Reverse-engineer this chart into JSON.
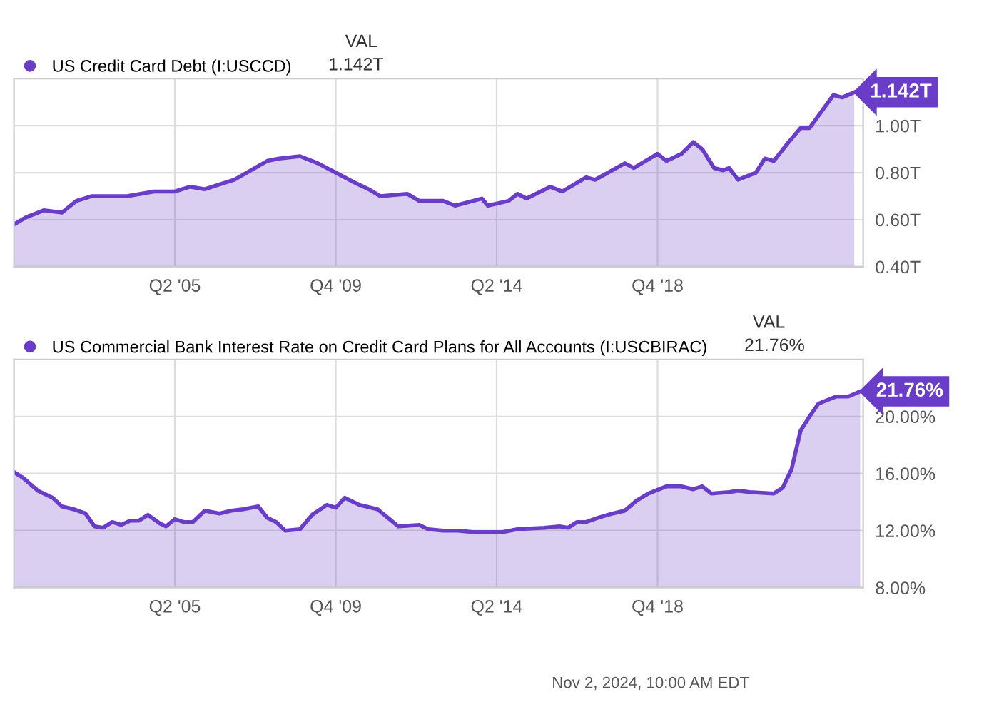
{
  "chart_data": [
    {
      "type": "area",
      "legend": "top left",
      "grid": true,
      "xlim": [
        "2000-10",
        "2024-07"
      ],
      "ylim": [
        0.4,
        1.2
      ],
      "xticks": [
        {
          "value": "2005-04",
          "label": "Q2 '05"
        },
        {
          "value": "2009-10",
          "label": "Q4 '09"
        },
        {
          "value": "2014-04",
          "label": "Q2 '14"
        },
        {
          "value": "2018-10",
          "label": "Q4 '18"
        }
      ],
      "yticks": [
        {
          "value": 0.4,
          "label": "0.40T"
        },
        {
          "value": 0.6,
          "label": "0.60T"
        },
        {
          "value": 0.8,
          "label": "0.80T"
        },
        {
          "value": 1.0,
          "label": "1.00T"
        }
      ],
      "annotations": [
        "VAL",
        "1.142T"
      ],
      "series": [
        {
          "name": "US Credit Card Debt (I:USCCD)",
          "color": "#6a3dc8",
          "x": [
            "2000-10",
            "2001-02",
            "2001-08",
            "2002-02",
            "2002-07",
            "2002-12",
            "2003-12",
            "2004-09",
            "2005-04",
            "2005-09",
            "2006-02",
            "2006-12",
            "2007-11",
            "2008-03",
            "2008-10",
            "2009-04",
            "2009-10",
            "2010-04",
            "2010-09",
            "2011-01",
            "2011-10",
            "2012-02",
            "2012-10",
            "2013-02",
            "2013-11",
            "2014-01",
            "2014-08",
            "2014-11",
            "2015-02",
            "2015-10",
            "2016-02",
            "2016-10",
            "2017-01",
            "2017-11",
            "2018-02",
            "2018-10",
            "2019-01",
            "2019-06",
            "2019-10",
            "2020-01",
            "2020-05",
            "2020-08",
            "2020-10",
            "2021-01",
            "2021-07",
            "2021-10",
            "2022-01",
            "2022-06",
            "2022-10",
            "2023-01",
            "2023-09",
            "2023-12",
            "2024-04"
          ],
          "values": [
            0.58,
            0.61,
            0.64,
            0.63,
            0.68,
            0.7,
            0.7,
            0.72,
            0.72,
            0.74,
            0.73,
            0.77,
            0.85,
            0.86,
            0.87,
            0.84,
            0.8,
            0.76,
            0.73,
            0.7,
            0.71,
            0.68,
            0.68,
            0.66,
            0.69,
            0.66,
            0.68,
            0.71,
            0.69,
            0.74,
            0.72,
            0.78,
            0.77,
            0.84,
            0.82,
            0.88,
            0.85,
            0.88,
            0.93,
            0.9,
            0.82,
            0.81,
            0.82,
            0.77,
            0.8,
            0.86,
            0.85,
            0.93,
            0.99,
            0.99,
            1.13,
            1.12,
            1.142
          ],
          "value_labels": [
            null,
            null,
            null,
            null,
            null,
            null,
            null,
            null,
            null,
            null,
            null,
            null,
            null,
            null,
            null,
            null,
            null,
            null,
            null,
            null,
            null,
            null,
            null,
            null,
            null,
            null,
            null,
            null,
            null,
            null,
            null,
            null,
            null,
            null,
            null,
            null,
            null,
            null,
            null,
            null,
            null,
            null,
            null,
            null,
            null,
            null,
            null,
            null,
            null,
            null,
            null,
            null,
            "1.142T"
          ]
        }
      ]
    },
    {
      "type": "area",
      "legend": "top left",
      "grid": true,
      "xlim": [
        "2000-10",
        "2024-07"
      ],
      "ylim": [
        8,
        24
      ],
      "xticks": [
        {
          "value": "2005-04",
          "label": "Q2 '05"
        },
        {
          "value": "2009-10",
          "label": "Q4 '09"
        },
        {
          "value": "2014-04",
          "label": "Q2 '14"
        },
        {
          "value": "2018-10",
          "label": "Q4 '18"
        }
      ],
      "yticks": [
        {
          "value": 8,
          "label": "8.00%"
        },
        {
          "value": 12,
          "label": "12.00%"
        },
        {
          "value": 16,
          "label": "16.00%"
        },
        {
          "value": 20,
          "label": "20.00%"
        }
      ],
      "annotations": [
        "VAL",
        "21.76%",
        "Nov 2, 2024, 10:00 AM EDT"
      ],
      "series": [
        {
          "name": "US Commercial Bank Interest Rate on Credit Card Plans for All Accounts (I:USCBIRAC)",
          "color": "#6a3dc8",
          "x": [
            "2000-10",
            "2001-01",
            "2001-06",
            "2001-11",
            "2002-02",
            "2002-06",
            "2002-10",
            "2003-01",
            "2003-04",
            "2003-07",
            "2003-10",
            "2004-01",
            "2004-04",
            "2004-07",
            "2004-11",
            "2005-01",
            "2005-04",
            "2005-07",
            "2005-10",
            "2006-02",
            "2006-07",
            "2006-11",
            "2007-03",
            "2007-08",
            "2007-11",
            "2008-02",
            "2008-05",
            "2008-10",
            "2009-02",
            "2009-07",
            "2009-10",
            "2010-01",
            "2010-06",
            "2010-12",
            "2011-07",
            "2012-02",
            "2012-05",
            "2012-10",
            "2013-03",
            "2013-08",
            "2014-06",
            "2014-11",
            "2015-08",
            "2016-01",
            "2016-04",
            "2016-07",
            "2016-10",
            "2017-02",
            "2017-07",
            "2017-11",
            "2018-03",
            "2018-07",
            "2019-01",
            "2019-06",
            "2019-10",
            "2020-01",
            "2020-04",
            "2020-10",
            "2021-01",
            "2021-05",
            "2022-01",
            "2022-04",
            "2022-07",
            "2022-10",
            "2023-01",
            "2023-04",
            "2023-10",
            "2024-02",
            "2024-06"
          ],
          "values": [
            16.1,
            15.7,
            14.8,
            14.3,
            13.7,
            13.5,
            13.2,
            12.3,
            12.2,
            12.6,
            12.4,
            12.7,
            12.7,
            13.1,
            12.5,
            12.3,
            12.8,
            12.6,
            12.6,
            13.4,
            13.2,
            13.4,
            13.5,
            13.7,
            12.9,
            12.6,
            12.0,
            12.1,
            13.1,
            13.8,
            13.6,
            14.3,
            13.8,
            13.5,
            12.3,
            12.4,
            12.1,
            12.0,
            12.0,
            11.9,
            11.9,
            12.1,
            12.2,
            12.3,
            12.2,
            12.6,
            12.6,
            12.9,
            13.2,
            13.4,
            14.1,
            14.6,
            15.1,
            15.1,
            14.9,
            15.1,
            14.6,
            14.7,
            14.8,
            14.7,
            14.6,
            15.0,
            16.3,
            19.0,
            20.0,
            20.9,
            21.4,
            21.4,
            21.76
          ],
          "value_labels": [
            null,
            null,
            null,
            null,
            null,
            null,
            null,
            null,
            null,
            null,
            null,
            null,
            null,
            null,
            null,
            null,
            null,
            null,
            null,
            null,
            null,
            null,
            null,
            null,
            null,
            null,
            null,
            null,
            null,
            null,
            null,
            null,
            null,
            null,
            null,
            null,
            null,
            null,
            null,
            null,
            null,
            null,
            null,
            null,
            null,
            null,
            null,
            null,
            null,
            null,
            null,
            null,
            null,
            null,
            null,
            null,
            null,
            null,
            null,
            null,
            null,
            null,
            null,
            null,
            null,
            null,
            null,
            null,
            "21.76%"
          ]
        }
      ]
    }
  ]
}
